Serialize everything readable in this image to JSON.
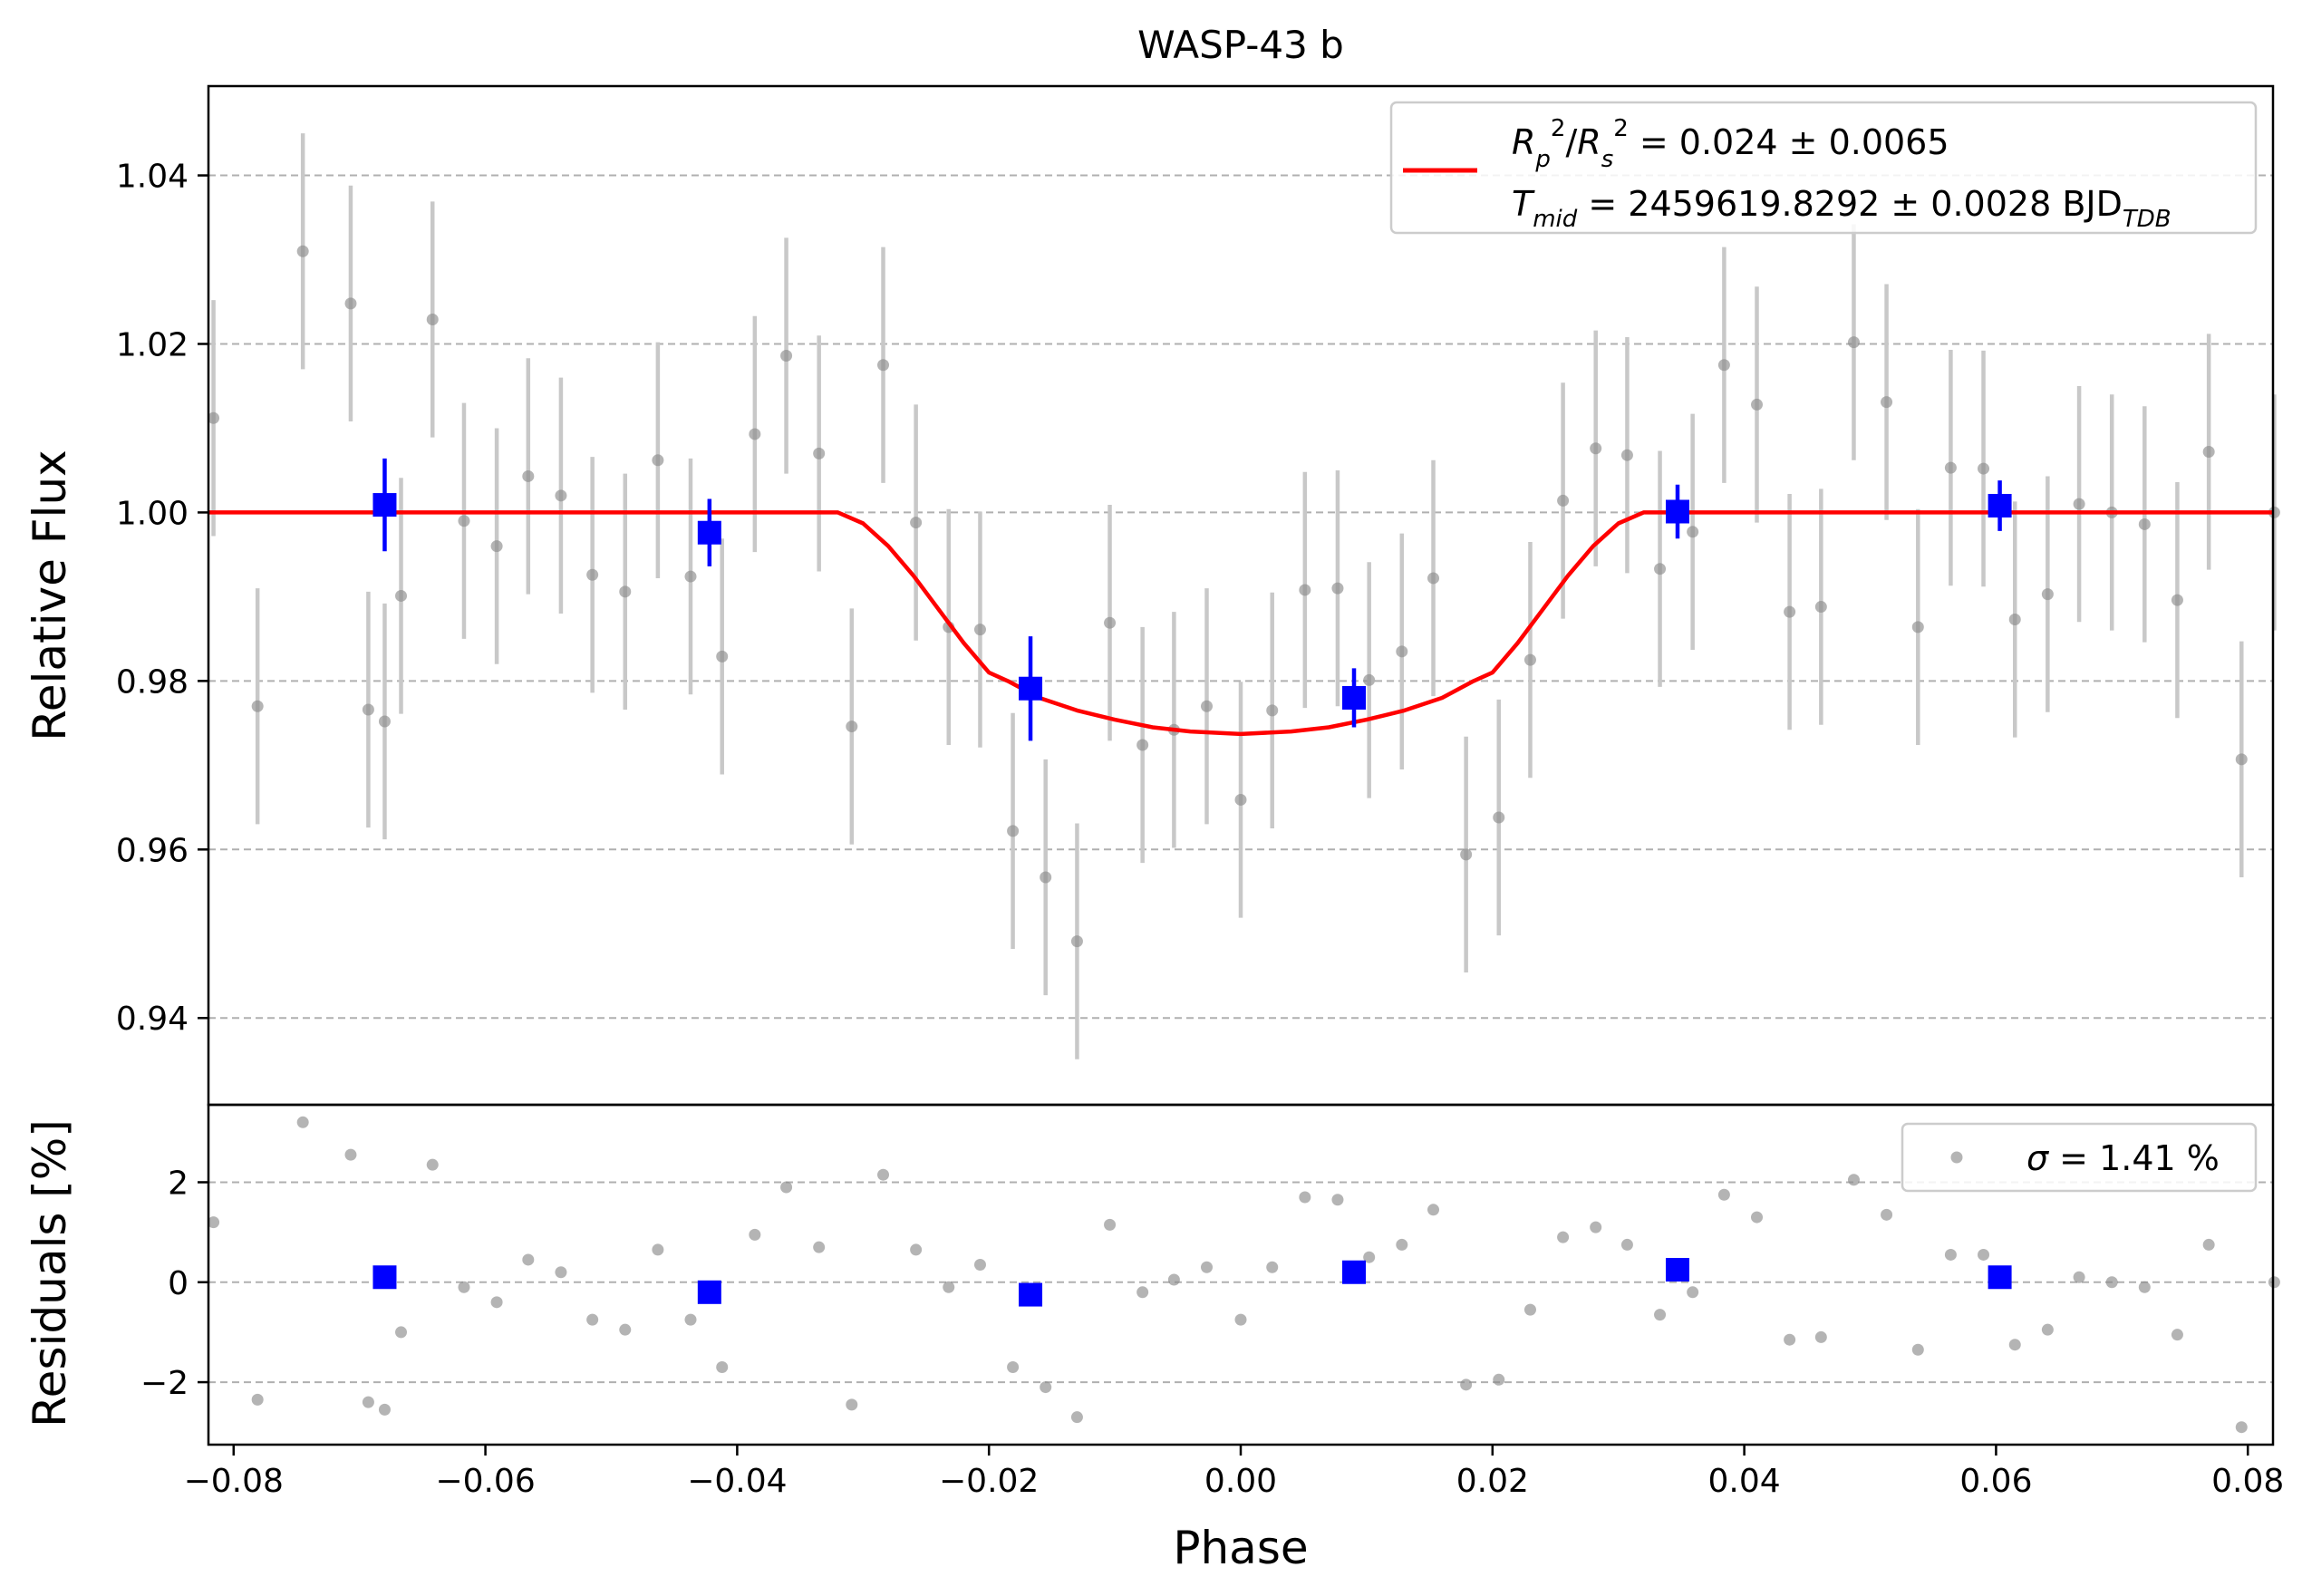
{
  "chart_data": [
    {
      "type": "scatter",
      "panel": "light-curve",
      "title": "WASP-43 b",
      "xlabel": "Phase",
      "ylabel": "Relative Flux",
      "xlim": [
        -0.082,
        0.082
      ],
      "ylim": [
        0.9297,
        1.0506
      ],
      "yticks": [
        0.94,
        0.96,
        0.98,
        1.0,
        1.02,
        1.04
      ],
      "ytick_labels": [
        "0.94",
        "0.96",
        "0.98",
        "1.00",
        "1.02",
        "1.04"
      ],
      "grid": "horizontal dashed",
      "legend_position": "top-right",
      "legend": {
        "model_label_line1": "R_p^2/R_s^2 = 0.024 ± 0.0065",
        "model_label_line2": "T_mid = 2459619.8292 ± 0.0028 BJD_TDB",
        "line1_value": " = 0.024 ± 0.0065",
        "line2_value": " = 2459619.8292 ± 0.0028 BJD",
        "line2_sub": "TDB"
      },
      "colors": {
        "data": "#8c8c8c",
        "errorbar": "#c8c8c8",
        "binned": "#0000ff",
        "model": "#ff0000",
        "grid": "#b0b0b0"
      },
      "series": [
        {
          "name": "data",
          "x": [
            -0.0816,
            -0.0781,
            -0.0745,
            -0.0707,
            -0.0693,
            -0.068,
            -0.0667,
            -0.0642,
            -0.0617,
            -0.0591,
            -0.0566,
            -0.054,
            -0.0515,
            -0.0489,
            -0.0463,
            -0.0437,
            -0.0412,
            -0.0386,
            -0.0361,
            -0.0335,
            -0.0309,
            -0.0284,
            -0.0258,
            -0.0232,
            -0.0207,
            -0.0181,
            -0.0155,
            -0.013,
            -0.0104,
            -0.0078,
            -0.0053,
            -0.0027,
            0.0,
            0.0025,
            0.0051,
            0.0077,
            0.0102,
            0.0128,
            0.0153,
            0.0179,
            0.0205,
            0.023,
            0.0256,
            0.0282,
            0.0307,
            0.0333,
            0.0359,
            0.0384,
            0.041,
            0.0436,
            0.0461,
            0.0487,
            0.0513,
            0.0538,
            0.0564,
            0.059,
            0.0615,
            0.0641,
            0.0666,
            0.0692,
            0.0718,
            0.0744,
            0.0769,
            0.0795,
            0.0821
          ],
          "y": [
            1.0112,
            0.977,
            1.031,
            1.0248,
            0.9766,
            0.9752,
            0.9901,
            1.0229,
            0.999,
            0.996,
            1.0043,
            1.002,
            0.9926,
            0.9906,
            1.0062,
            0.9924,
            0.9829,
            1.0093,
            1.0186,
            1.007,
            0.9746,
            1.0175,
            0.9988,
            0.9864,
            0.9861,
            0.9622,
            0.9567,
            0.9491,
            0.9869,
            0.9724,
            0.9742,
            0.977,
            0.9659,
            0.9765,
            0.9908,
            0.991,
            0.9801,
            0.9835,
            0.9922,
            0.9594,
            0.9638,
            0.9825,
            1.0014,
            1.0076,
            1.0068,
            0.9933,
            0.9977,
            1.0175,
            1.0128,
            0.9882,
            0.9888,
            1.0202,
            1.0131,
            0.9864,
            1.0053,
            1.0052,
            0.9873,
            0.9903,
            1.001,
            1.0,
            0.9986,
            0.9896,
            1.0072,
            0.9707,
            1.0
          ],
          "yerr": 0.014
        },
        {
          "name": "binned",
          "x": [
            -0.068,
            -0.0422,
            -0.0167,
            0.009,
            0.0347,
            0.0603
          ],
          "y": [
            1.0009,
            0.9976,
            0.9791,
            0.978,
            1.0001,
            1.0008
          ],
          "yerr": [
            0.0055,
            0.004,
            0.0062,
            0.0035,
            0.0032,
            0.003
          ]
        },
        {
          "name": "model",
          "x": [
            -0.082,
            -0.032,
            -0.03,
            -0.028,
            -0.026,
            -0.024,
            -0.022,
            -0.02,
            -0.0185,
            -0.016,
            -0.013,
            -0.01,
            -0.007,
            -0.004,
            0.0,
            0.004,
            0.007,
            0.01,
            0.013,
            0.016,
            0.0185,
            0.02,
            0.022,
            0.024,
            0.026,
            0.028,
            0.03,
            0.032,
            0.082
          ],
          "y": [
            1.0,
            1.0,
            0.9987,
            0.996,
            0.9925,
            0.9885,
            0.9845,
            0.981,
            0.98,
            0.978,
            0.9765,
            0.9754,
            0.9745,
            0.974,
            0.9737,
            0.974,
            0.9745,
            0.9754,
            0.9765,
            0.978,
            0.98,
            0.981,
            0.9845,
            0.9885,
            0.9925,
            0.996,
            0.9987,
            1.0,
            1.0
          ]
        }
      ]
    },
    {
      "type": "scatter",
      "panel": "residuals",
      "xlabel": "Phase",
      "ylabel": "Residuals [%]",
      "xlim": [
        -0.082,
        0.082
      ],
      "ylim": [
        -3.25,
        3.55
      ],
      "xticks": [
        -0.08,
        -0.06,
        -0.04,
        -0.02,
        0.0,
        0.02,
        0.04,
        0.06,
        0.08
      ],
      "xtick_labels": [
        "−0.08",
        "−0.06",
        "−0.04",
        "−0.02",
        "0.00",
        "0.02",
        "0.04",
        "0.06",
        "0.08"
      ],
      "yticks": [
        -2,
        0,
        2
      ],
      "ytick_labels": [
        "−2",
        "0",
        "2"
      ],
      "grid": "horizontal dashed",
      "legend_position": "top-right",
      "legend": {
        "label": "σ = 1.41 %",
        "label_value": " = 1.41 %"
      },
      "series": [
        {
          "name": "residuals",
          "x": [
            -0.0816,
            -0.0781,
            -0.0745,
            -0.0707,
            -0.0693,
            -0.068,
            -0.0667,
            -0.0642,
            -0.0617,
            -0.0591,
            -0.0566,
            -0.054,
            -0.0515,
            -0.0489,
            -0.0463,
            -0.0437,
            -0.0412,
            -0.0386,
            -0.0361,
            -0.0335,
            -0.0309,
            -0.0284,
            -0.0258,
            -0.0232,
            -0.0207,
            -0.0181,
            -0.0155,
            -0.013,
            -0.0104,
            -0.0078,
            -0.0053,
            -0.0027,
            0.0,
            0.0025,
            0.0051,
            0.0077,
            0.0102,
            0.0128,
            0.0153,
            0.0179,
            0.0205,
            0.023,
            0.0256,
            0.0282,
            0.0307,
            0.0333,
            0.0359,
            0.0384,
            0.041,
            0.0436,
            0.0461,
            0.0487,
            0.0513,
            0.0538,
            0.0564,
            0.059,
            0.0615,
            0.0641,
            0.0666,
            0.0692,
            0.0718,
            0.0744,
            0.0769,
            0.0795,
            0.0821
          ],
          "y": [
            1.2,
            -2.35,
            3.2,
            2.55,
            -2.4,
            -2.55,
            -1.0,
            2.35,
            -0.1,
            -0.4,
            0.45,
            0.2,
            -0.75,
            -0.95,
            0.65,
            -0.75,
            -1.7,
            0.95,
            1.9,
            0.7,
            -2.45,
            2.15,
            0.65,
            -0.1,
            0.35,
            -1.7,
            -2.1,
            -2.7,
            1.15,
            -0.2,
            0.05,
            0.3,
            -0.75,
            0.3,
            1.7,
            1.65,
            0.5,
            0.75,
            1.45,
            -2.05,
            -1.95,
            -0.55,
            0.9,
            1.1,
            0.75,
            -0.65,
            -0.2,
            1.75,
            1.3,
            -1.15,
            -1.1,
            2.05,
            1.35,
            -1.35,
            0.55,
            0.55,
            -1.25,
            -0.95,
            0.1,
            0.0,
            -0.1,
            -1.05,
            0.75,
            -2.9,
            0.0
          ]
        },
        {
          "name": "binned",
          "x": [
            -0.068,
            -0.0422,
            -0.0167,
            0.009,
            0.0347,
            0.0603
          ],
          "y": [
            0.1,
            -0.2,
            -0.25,
            0.2,
            0.25,
            0.1
          ]
        }
      ]
    }
  ]
}
